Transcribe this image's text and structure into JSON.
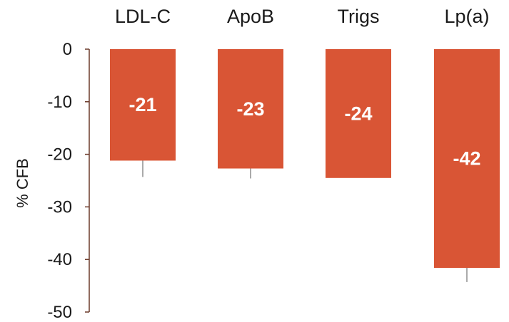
{
  "chart_data": {
    "type": "bar",
    "categories": [
      "LDL-C",
      "ApoB",
      "Trigs",
      "Lp(a)"
    ],
    "values": [
      -21,
      -23,
      -24,
      -42
    ],
    "bar_ends": [
      -21.2,
      -22.7,
      -24.5,
      -41.6
    ],
    "error_low": [
      -24.3,
      -24.6,
      -24.5,
      -44.3
    ],
    "data_labels": [
      "-21",
      "-23",
      "-24",
      "-42"
    ],
    "ylabel": "% CFB",
    "ylim": [
      -50,
      0
    ],
    "yticks": [
      0,
      -10,
      -20,
      -30,
      -40,
      -50
    ],
    "ytick_labels": [
      "0",
      "-10",
      "-20",
      "-30",
      "-40",
      "-50"
    ],
    "category_axis_position": "top",
    "grid": false,
    "colors": {
      "bar": "#d95535",
      "axis": "#6b3a2a",
      "error_bar": "#555555"
    }
  }
}
